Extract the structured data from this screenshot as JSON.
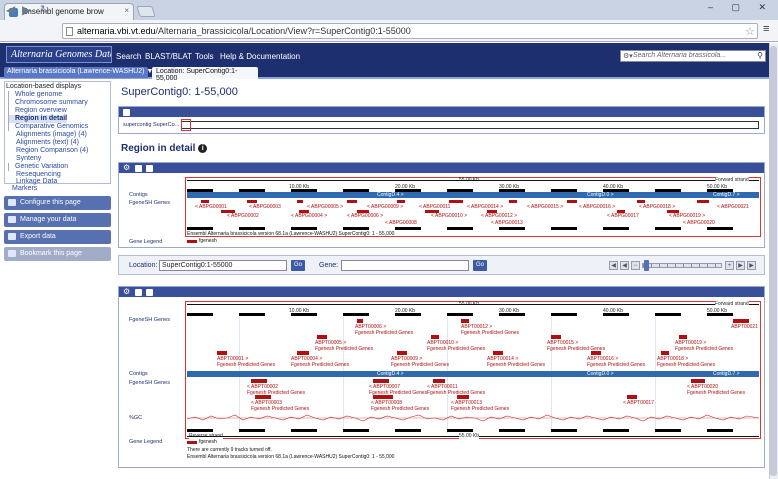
{
  "browser": {
    "tab_title": "Ensembl genome brow",
    "tab_close": "×",
    "url_host": "alternaria.vbi.vt.edu",
    "url_path": "/Alternaria_brassicicola/Location/View?r=SuperContig0:1-55000",
    "window_controls": "– ▢ ✕"
  },
  "header": {
    "logo_text": "Alternaria Genomes Database",
    "links": [
      "Search",
      "BLAST/BLAT",
      "Tools",
      "Help & Documentation"
    ],
    "search_placeholder": "Search Alternaria brassicola..."
  },
  "species_bar": {
    "species": "Alternaria brassicicola (Lawrence-WASHU2) ▼",
    "location_tab": "Location: SuperContig0:1-55,000"
  },
  "sidebar": {
    "heading": "Location-based displays",
    "items": [
      {
        "label": "Whole genome",
        "level": 2
      },
      {
        "label": "Chromosome summary",
        "level": 2
      },
      {
        "label": "Region overview",
        "level": 2
      },
      {
        "label": "Region in detail",
        "level": 2,
        "selected": true
      },
      {
        "label": "Comparative Genomics",
        "level": 2
      },
      {
        "label": "Alignments (image) (4)",
        "level": 3
      },
      {
        "label": "Alignments (text) (4)",
        "level": 3
      },
      {
        "label": "Region Comparison (4)",
        "level": 3
      },
      {
        "label": "Synteny",
        "level": 3
      },
      {
        "label": "Genetic Variation",
        "level": 2
      },
      {
        "label": "Resequencing",
        "level": 3
      },
      {
        "label": "Linkage Data",
        "level": 3
      },
      {
        "label": "Markers",
        "level": 1
      }
    ],
    "buttons": [
      "Configure this page",
      "Manage your data",
      "Export data",
      "Bookmark this page"
    ]
  },
  "main": {
    "title": "SuperContig0: 1-55,000",
    "overview_label": "supercontig SuperCo...",
    "region_title": "Region in detail",
    "info_icon": "i",
    "top_panel": {
      "total_len": "55.00 Kb",
      "forward": "Forward strand",
      "kb_ticks": [
        "10.00 Kb",
        "20.00 Kb",
        "30.00 Kb",
        "40.00 Kb",
        "50.00 Kb"
      ],
      "tracks": [
        "Contigs",
        "FgeneSH Genes"
      ],
      "contigs": [
        "ContigD.4 >",
        "ContigD.0 >",
        "ContigD.7 >"
      ],
      "genes_upper": [
        "< ABPG00001",
        "< ABPG00003",
        "< ABPG00005 >",
        "< ABPG00009 >",
        "< ABPG00011",
        "< ABPG00014 >",
        "< ABPG00015 >",
        "< ABPG00016 >",
        "< ABPG00018 >",
        "< ABPG00021"
      ],
      "genes_lower": [
        "< ABPG00002",
        "< ABPG00004 >",
        "< ABPG00006 >",
        "< ABPG00010 >",
        "< ABPG00012 >",
        "< ABPG00017",
        "< ABPG00019 >"
      ],
      "genes_bottom": [
        "< ABPG00008",
        "< ABPG00013",
        "< ABPG00020"
      ],
      "footer": "Ensembl Alternaria brassicicola version 68.1a (Lawrence-WASHU2) SuperContig0: 1 - 55,000",
      "legend_label": "Gene Legend",
      "legend_item": "fgenesh"
    },
    "nav": {
      "location_label": "Location:",
      "location_value": "SuperContig0:1-55000",
      "gene_label": "Gene:",
      "gene_value": "",
      "go": "Go"
    },
    "bottom_panel": {
      "total_len": "55.00 Kb",
      "forward": "Forward strand",
      "reverse": "Reverse strand",
      "kb_ticks": [
        "10.00 Kb",
        "20.00 Kb",
        "30.00 Kb",
        "40.00 Kb",
        "50.00 Kb"
      ],
      "tracks": [
        "FgeneSH Genes",
        "Contigs",
        "FgeneSH Genes",
        "%GC"
      ],
      "fwd_transcripts": [
        "ABPT00001 >",
        "ABPT00004 >",
        "ABPT00005 >",
        "ABPT00006 >",
        "ABPT00009 >",
        "ABPT00010 >",
        "ABPT00012 >",
        "ABPT00014 >",
        "ABPT00015 >",
        "ABPT00016 >",
        "ABPT00018 >",
        "ABPT00019 >",
        "ABPT00021"
      ],
      "rev_transcripts": [
        "< ABPT00002",
        "< ABPT00003",
        "< ABPT00007",
        "< ABPT00008",
        "< ABPT00011",
        "< ABPT00013",
        "< ABPT00017",
        "< ABPT00020"
      ],
      "predicted": "Fgenesh Predicted Genes",
      "contigs": [
        "ContigD.4 >",
        "ContigD.0 >",
        "ContigD.7 >"
      ],
      "legend_label": "Gene Legend",
      "legend_item": "fgenesh",
      "tracks_off": "There are currently 9 tracks turned off.",
      "footer": "Ensembl Alternaria brassicicola version 68.1a (Lawrence-WASHU2) SuperContig0: 1 - 55,000"
    }
  },
  "colors": {
    "header": "#1d2f6e",
    "contig": "#2f6ab0",
    "gene": "#b01010"
  }
}
